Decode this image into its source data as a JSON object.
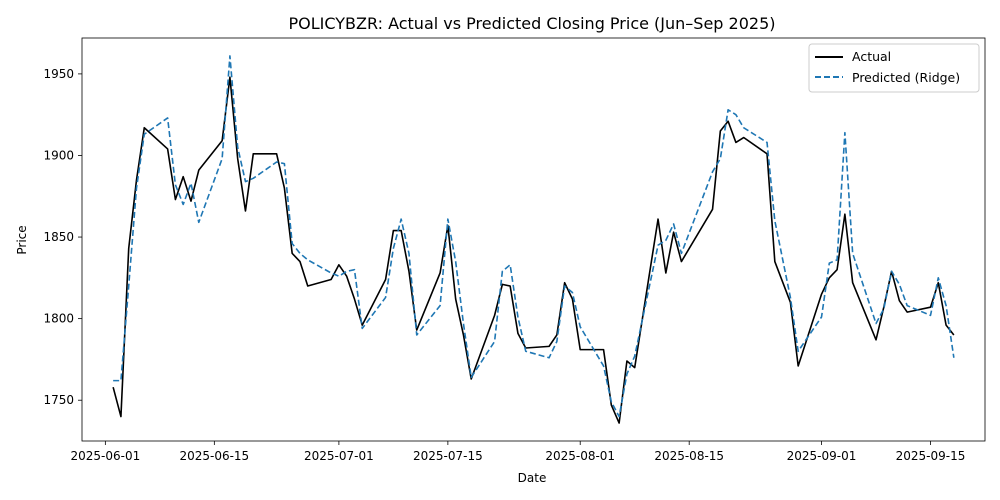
{
  "chart_data": {
    "type": "line",
    "title": "POLICYBZR: Actual vs Predicted Closing Price (Jun–Sep 2025)",
    "xlabel": "Date",
    "ylabel": "Price",
    "xlim": [
      "2025-05-29",
      "2025-09-22"
    ],
    "ylim": [
      1725,
      1972
    ],
    "x_ticks": [
      "2025-06-01",
      "2025-06-15",
      "2025-07-01",
      "2025-07-15",
      "2025-08-01",
      "2025-08-15",
      "2025-09-01",
      "2025-09-15"
    ],
    "y_ticks": [
      1750,
      1800,
      1850,
      1900,
      1950
    ],
    "grid": false,
    "legend_position": "top-right",
    "colors": {
      "actual": "#000000",
      "predicted": "#1f77b4"
    },
    "x": [
      "2025-06-02",
      "2025-06-03",
      "2025-06-04",
      "2025-06-05",
      "2025-06-06",
      "2025-06-09",
      "2025-06-10",
      "2025-06-11",
      "2025-06-12",
      "2025-06-13",
      "2025-06-16",
      "2025-06-17",
      "2025-06-18",
      "2025-06-19",
      "2025-06-20",
      "2025-06-23",
      "2025-06-24",
      "2025-06-25",
      "2025-06-26",
      "2025-06-27",
      "2025-06-30",
      "2025-07-01",
      "2025-07-02",
      "2025-07-03",
      "2025-07-04",
      "2025-07-07",
      "2025-07-08",
      "2025-07-09",
      "2025-07-10",
      "2025-07-11",
      "2025-07-14",
      "2025-07-15",
      "2025-07-16",
      "2025-07-17",
      "2025-07-18",
      "2025-07-21",
      "2025-07-22",
      "2025-07-23",
      "2025-07-24",
      "2025-07-25",
      "2025-07-28",
      "2025-07-29",
      "2025-07-30",
      "2025-07-31",
      "2025-08-01",
      "2025-08-04",
      "2025-08-05",
      "2025-08-06",
      "2025-08-07",
      "2025-08-08",
      "2025-08-11",
      "2025-08-12",
      "2025-08-13",
      "2025-08-14",
      "2025-08-18",
      "2025-08-19",
      "2025-08-20",
      "2025-08-21",
      "2025-08-22",
      "2025-08-25",
      "2025-08-26",
      "2025-08-28",
      "2025-08-29",
      "2025-09-01",
      "2025-09-02",
      "2025-09-03",
      "2025-09-04",
      "2025-09-05",
      "2025-09-08",
      "2025-09-09",
      "2025-09-10",
      "2025-09-11",
      "2025-09-12",
      "2025-09-15",
      "2025-09-16",
      "2025-09-17",
      "2025-09-18"
    ],
    "series": [
      {
        "name": "Actual",
        "values": [
          1758,
          1740,
          1843,
          1885,
          1917,
          1904,
          1873,
          1887,
          1872,
          1891,
          1909,
          1948,
          1898,
          1866,
          1901,
          1901,
          1880,
          1840,
          1835,
          1820,
          1824,
          1833,
          1826,
          1812,
          1796,
          1824,
          1854,
          1854,
          1829,
          1793,
          1828,
          1857,
          1812,
          1790,
          1763,
          1802,
          1821,
          1820,
          1791,
          1782,
          1783,
          1790,
          1822,
          1812,
          1781,
          1781,
          1747,
          1736,
          1774,
          1770,
          1861,
          1828,
          1853,
          1835,
          1867,
          1915,
          1921,
          1908,
          1911,
          1901,
          1835,
          1810,
          1771,
          1815,
          1825,
          1830,
          1864,
          1822,
          1787,
          1807,
          1829,
          1811,
          1804,
          1807,
          1822,
          1796,
          1790
        ]
      },
      {
        "name": "Predicted (Ridge)",
        "values": [
          1762,
          1762,
          1820,
          1880,
          1913,
          1923,
          1882,
          1870,
          1883,
          1859,
          1898,
          1961,
          1905,
          1884,
          1886,
          1896,
          1895,
          1846,
          1840,
          1836,
          1828,
          1826,
          1829,
          1830,
          1794,
          1813,
          1843,
          1861,
          1840,
          1790,
          1808,
          1861,
          1835,
          1797,
          1764,
          1786,
          1829,
          1833,
          1801,
          1780,
          1776,
          1786,
          1820,
          1816,
          1795,
          1771,
          1749,
          1740,
          1766,
          1777,
          1845,
          1848,
          1858,
          1840,
          1890,
          1898,
          1928,
          1925,
          1917,
          1908,
          1860,
          1813,
          1780,
          1801,
          1834,
          1836,
          1914,
          1840,
          1797,
          1806,
          1829,
          1821,
          1808,
          1802,
          1825,
          1808,
          1776
        ]
      }
    ]
  }
}
